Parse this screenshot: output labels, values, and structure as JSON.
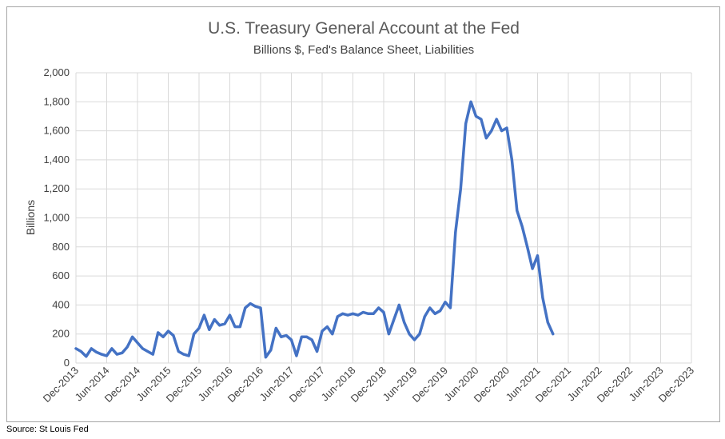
{
  "chart_data": {
    "type": "line",
    "title": "U.S. Treasury General Account at the Fed",
    "subtitle": "Billions $, Fed's Balance Sheet, Liabilities",
    "ylabel": "Billions",
    "xlabel": "",
    "ylim": [
      0,
      2000
    ],
    "y_ticks": [
      0,
      200,
      400,
      600,
      800,
      1000,
      1200,
      1400,
      1600,
      1800,
      2000
    ],
    "y_tick_labels": [
      "0",
      "200",
      "400",
      "600",
      "800",
      "1,000",
      "1,200",
      "1,400",
      "1,600",
      "1,800",
      "2,000"
    ],
    "x_tick_labels": [
      "Dec-2013",
      "Jun-2014",
      "Dec-2014",
      "Jun-2015",
      "Dec-2015",
      "Jun-2016",
      "Dec-2016",
      "Jun-2017",
      "Dec-2017",
      "Jun-2018",
      "Dec-2018",
      "Jun-2019",
      "Dec-2019",
      "Jun-2020",
      "Dec-2020",
      "Jun-2021",
      "Dec-2021",
      "Jun-2022",
      "Dec-2022",
      "Jun-2023",
      "Dec-2023"
    ],
    "grid": true,
    "legend": "none",
    "color": "#4472c4",
    "series": [
      {
        "x": [
          "2013-12",
          "2014-01",
          "2014-02",
          "2014-03",
          "2014-04",
          "2014-05",
          "2014-06",
          "2014-07",
          "2014-08",
          "2014-09",
          "2014-10",
          "2014-11",
          "2014-12",
          "2015-01",
          "2015-02",
          "2015-03",
          "2015-04",
          "2015-05",
          "2015-06",
          "2015-07",
          "2015-08",
          "2015-09",
          "2015-10",
          "2015-11",
          "2015-12",
          "2016-01",
          "2016-02",
          "2016-03",
          "2016-04",
          "2016-05",
          "2016-06",
          "2016-07",
          "2016-08",
          "2016-09",
          "2016-10",
          "2016-11",
          "2016-12",
          "2017-01",
          "2017-02",
          "2017-03",
          "2017-04",
          "2017-05",
          "2017-06",
          "2017-07",
          "2017-08",
          "2017-09",
          "2017-10",
          "2017-11",
          "2017-12",
          "2018-01",
          "2018-02",
          "2018-03",
          "2018-04",
          "2018-05",
          "2018-06",
          "2018-07",
          "2018-08",
          "2018-09",
          "2018-10",
          "2018-11",
          "2018-12",
          "2019-01",
          "2019-02",
          "2019-03",
          "2019-04",
          "2019-05",
          "2019-06",
          "2019-07",
          "2019-08",
          "2019-09",
          "2019-10",
          "2019-11",
          "2019-12",
          "2020-01",
          "2020-02",
          "2020-03",
          "2020-04",
          "2020-05",
          "2020-06",
          "2020-07",
          "2020-08",
          "2020-09",
          "2020-10",
          "2020-11",
          "2020-12",
          "2021-01",
          "2021-02",
          "2021-03",
          "2021-04",
          "2021-05",
          "2021-06",
          "2021-07",
          "2021-08",
          "2021-09"
        ],
        "values": [
          100,
          80,
          45,
          100,
          75,
          60,
          50,
          100,
          60,
          70,
          110,
          180,
          140,
          100,
          80,
          60,
          210,
          180,
          220,
          190,
          80,
          60,
          50,
          200,
          240,
          330,
          230,
          300,
          260,
          270,
          330,
          250,
          250,
          380,
          410,
          390,
          380,
          40,
          90,
          240,
          180,
          190,
          160,
          50,
          180,
          180,
          160,
          80,
          220,
          250,
          200,
          320,
          340,
          330,
          340,
          330,
          350,
          340,
          340,
          380,
          350,
          200,
          300,
          400,
          280,
          200,
          160,
          200,
          320,
          380,
          340,
          360,
          420,
          380,
          900,
          1200,
          1650,
          1800,
          1700,
          1680,
          1550,
          1600,
          1680,
          1600,
          1620,
          1400,
          1050,
          940,
          800,
          650,
          740,
          450,
          280,
          200
        ]
      }
    ]
  },
  "source": "Source: St Louis Fed"
}
